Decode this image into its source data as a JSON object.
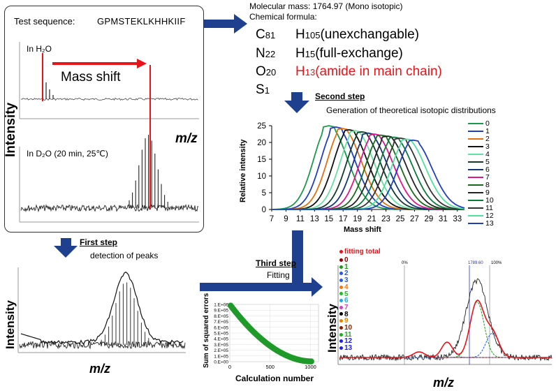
{
  "test_panel": {
    "sequence_label": "Test sequence:",
    "sequence": "GPMSTEKLKHHKIIF",
    "h2o_label": "In H₂O",
    "d2o_label": "In D₂O (20 min, 25℃)",
    "mass_shift": "Mass shift",
    "intensity": "Intensity",
    "mz": "m/z"
  },
  "molecular": {
    "mass": "Molecular mass: 1764.97 (Mono isotopic)",
    "formula_title": "Chemical formula:",
    "c": {
      "el": "C",
      "n": "81"
    },
    "n": {
      "el": "N",
      "n": "22"
    },
    "o": {
      "el": "O",
      "n": "20"
    },
    "s": {
      "el": "S",
      "n": "1"
    },
    "h1": {
      "el": "H",
      "n": "105",
      "note": "(unexchangable)"
    },
    "h2": {
      "el": "H",
      "n": "15",
      "note": "(full-exchange)"
    },
    "h3": {
      "el": "H",
      "n": "13",
      "note": "(amide in main chain)"
    }
  },
  "second_step": {
    "title": "Second step",
    "desc": "Generation of theoretical isotopic distributions"
  },
  "first_step": {
    "title": "First step",
    "desc": "detection of peaks",
    "intensity": "Intensity",
    "mz": "m/z"
  },
  "third_step": {
    "title": "Third step",
    "desc": "Fitting"
  },
  "fit_panel": {
    "intensity": "Intensity",
    "mz": "m/z",
    "label_0pct": "0%",
    "label_peak": "1789.60",
    "label_100pct": "100%",
    "legend_total": "fitting total",
    "legend": [
      "0",
      "1",
      "2",
      "3",
      "4",
      "5",
      "6",
      "7",
      "8",
      "9",
      "10",
      "11",
      "12",
      "13"
    ]
  },
  "colors": {
    "red": "#e8141a",
    "arrow_blue": "#1f3f8f",
    "dots": [
      "#8b0000",
      "#1a9a1a",
      "#2a5ad8",
      "#2a5ad8",
      "#f07a10",
      "#22bb22",
      "#22aadd",
      "#cc44cc",
      "#000000",
      "#dd8800",
      "#8b2200",
      "#22aa22",
      "#2222dd",
      "#2222dd"
    ]
  },
  "chart_data": [
    {
      "type": "line",
      "title": "",
      "xlabel": "Mass shift",
      "ylabel": "Relative intensity",
      "xlim": [
        7,
        34
      ],
      "ylim": [
        0,
        25
      ],
      "xticks": [
        "7",
        "9",
        "11",
        "13",
        "15",
        "17",
        "19",
        "21",
        "23",
        "25",
        "27",
        "29",
        "31",
        "33"
      ],
      "yticks": [
        "0",
        "5",
        "10",
        "15",
        "20",
        "25"
      ],
      "series": [
        {
          "name": "0",
          "center": 15.0,
          "peak": 25.0,
          "color": "#1a9a4a"
        },
        {
          "name": "1",
          "center": 16.0,
          "peak": 24.6,
          "color": "#1f3fbf"
        },
        {
          "name": "2",
          "center": 16.9,
          "peak": 24.2,
          "color": "#e07010"
        },
        {
          "name": "3",
          "center": 17.8,
          "peak": 23.8,
          "color": "#111111"
        },
        {
          "name": "4",
          "center": 18.7,
          "peak": 23.5,
          "color": "#66e0a0"
        },
        {
          "name": "5",
          "center": 19.6,
          "peak": 23.2,
          "color": "#133a2a"
        },
        {
          "name": "6",
          "center": 20.5,
          "peak": 22.8,
          "color": "#14377a"
        },
        {
          "name": "7",
          "center": 21.4,
          "peak": 22.5,
          "color": "#e0148c"
        },
        {
          "name": "8",
          "center": 22.3,
          "peak": 22.2,
          "color": "#1a6a1a"
        },
        {
          "name": "9",
          "center": 23.2,
          "peak": 21.9,
          "color": "#222222"
        },
        {
          "name": "10",
          "center": 24.1,
          "peak": 21.6,
          "color": "#0a7a3a"
        },
        {
          "name": "11",
          "center": 25.0,
          "peak": 21.3,
          "color": "#333333"
        },
        {
          "name": "12",
          "center": 25.9,
          "peak": 21.0,
          "color": "#50e0a0"
        },
        {
          "name": "13",
          "center": 26.8,
          "peak": 20.7,
          "color": "#1f3fbf"
        }
      ]
    },
    {
      "type": "scatter",
      "title": "",
      "xlabel": "Calculation number",
      "ylabel": "Sum of squared errors",
      "xlim": [
        0,
        1100
      ],
      "ylim": [
        0,
        1000000
      ],
      "xticks": [
        "0",
        "500",
        "1000"
      ],
      "yticks": [
        "0.E+00",
        "1.E+05",
        "2.E+05",
        "3.E+05",
        "4.E+05",
        "5.E+05",
        "6.E+05",
        "7.E+05",
        "8.E+05",
        "9.E+05",
        "1.E+06"
      ],
      "start": 980000,
      "end": 5000,
      "points": 60
    }
  ]
}
